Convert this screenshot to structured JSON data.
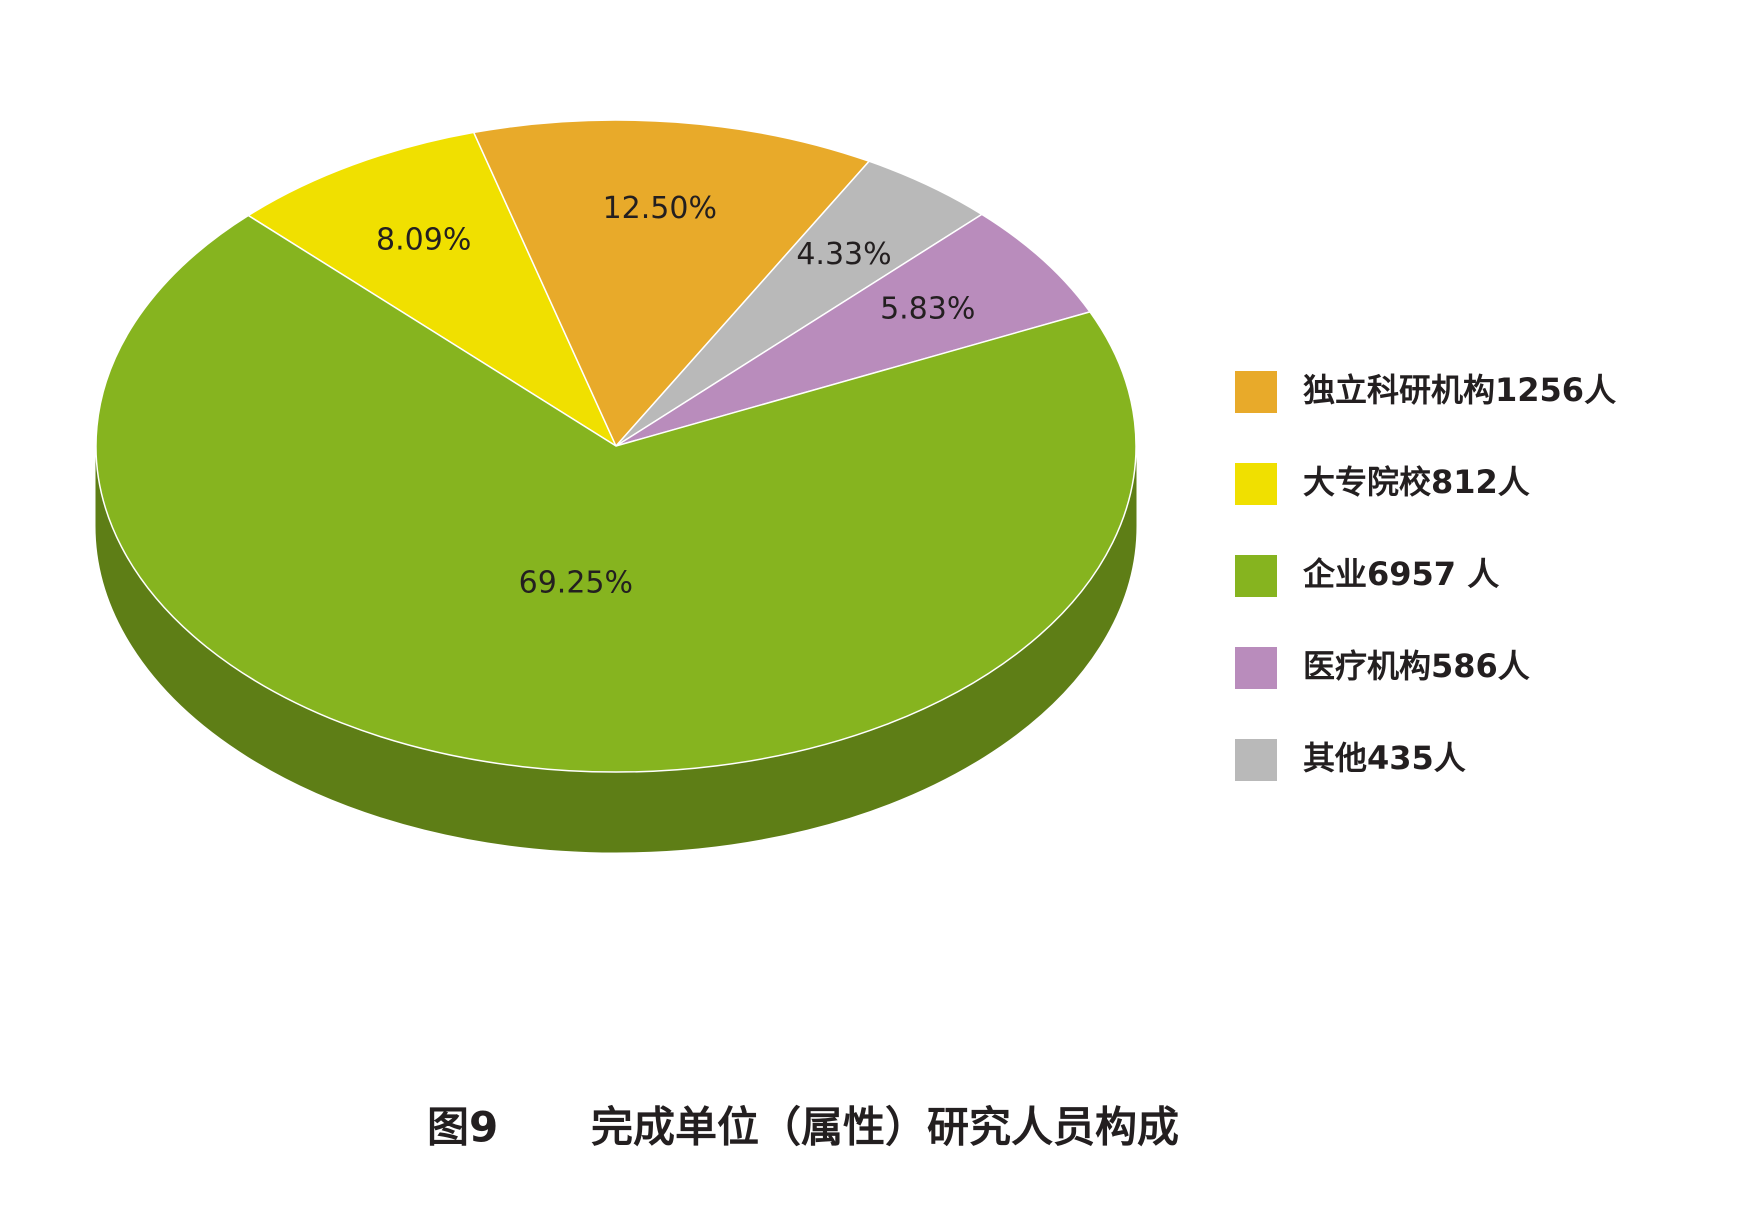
{
  "chart_data": {
    "type": "pie",
    "figure_label": "图9",
    "title": "完成单位（属性）研究人员构成",
    "categories": [
      "大专院校812人",
      "独立科研机构1256人",
      "其他435人",
      "医疗机构586人",
      "企业6957 人"
    ],
    "values": [
      8.09,
      12.5,
      4.33,
      5.83,
      69.25
    ],
    "value_labels": [
      "8.09%",
      "12.50%",
      "4.33%",
      "5.83%",
      "69.25%"
    ],
    "colors": [
      "#f0e000",
      "#e8aa2a",
      "#b9b9b9",
      "#b98cbc",
      "#86b41f"
    ],
    "legend": "right"
  }
}
